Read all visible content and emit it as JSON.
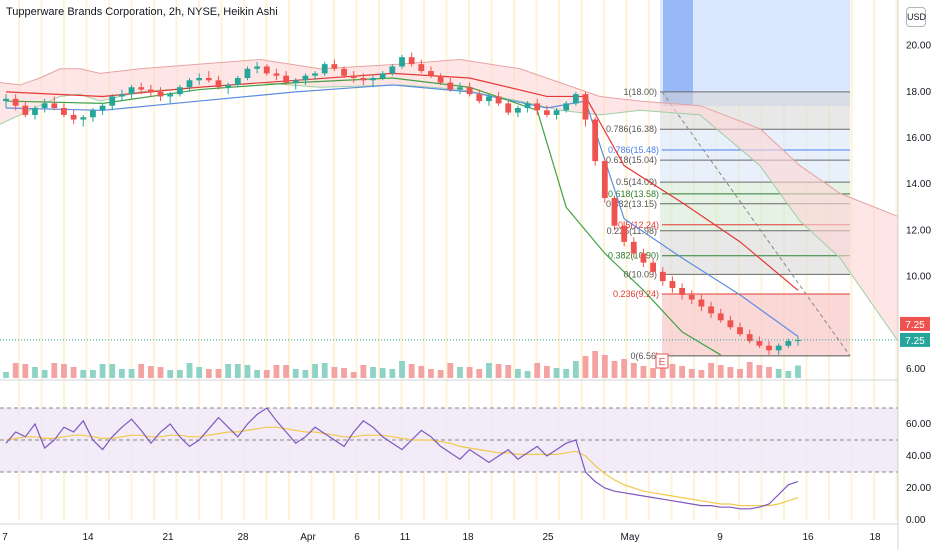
{
  "header": {
    "title": "Tupperware Brands Corporation, 2h, NYSE, Heikin Ashi",
    "currency_label": "USD"
  },
  "colors": {
    "bull": "#26a69a",
    "bear": "#ef5350",
    "session_band": "#fff3d6",
    "cloud_up": "#c8e6c9",
    "cloud_down": "#fdd6d6",
    "rsi_line": "#7e57c2",
    "rsi_ma": "#f2c94c",
    "projection_blue": "#4a80f0",
    "fib_gray": "#d6d6d6",
    "fib_pink": "#f8c8c8",
    "fib_green": "#cfe8d0",
    "fib_lightblue": "#d6e6f8"
  },
  "chart_data": {
    "type": "candlestick",
    "style": "Heikin Ashi",
    "interval": "2h",
    "price_axis": {
      "ticks": [
        "20.00",
        "18.00",
        "16.00",
        "14.00",
        "12.00",
        "10.00",
        "8.00",
        "6.00"
      ],
      "range": [
        5.6,
        21.2
      ]
    },
    "last_price_labels": [
      "7.25",
      "7.25"
    ],
    "time_axis": {
      "ticks": [
        "7",
        "14",
        "21",
        "28",
        "Apr",
        "6",
        "11",
        "18",
        "25",
        "May",
        "9",
        "16",
        "18"
      ]
    },
    "fib_retracement_upper": {
      "levels": [
        {
          "label": "1(18.00)",
          "value": 18.0
        },
        {
          "label": "0.786(16.38)",
          "value": 16.38
        },
        {
          "label": "0.618(15.04)",
          "value": 15.04
        },
        {
          "label": "0.5(14.09)",
          "value": 14.09
        },
        {
          "label": "0.382(13.15)",
          "value": 13.15
        },
        {
          "label": "0.236(11.98)",
          "value": 11.98
        },
        {
          "label": "0(10.09)",
          "value": 10.09
        }
      ]
    },
    "fib_retracement_lower": {
      "levels": [
        {
          "label": "0.786(15.48)",
          "value": 15.48
        },
        {
          "label": "0.618(13.58)",
          "value": 13.58
        },
        {
          "label": "0.5(12.24)",
          "value": 12.24
        },
        {
          "label": "0.382(10.90)",
          "value": 10.9
        },
        {
          "label": "0.236(9.24)",
          "value": 9.24
        },
        {
          "label": "0(6.56)",
          "value": 6.56
        }
      ]
    },
    "earnings_marker": "E",
    "candles": [
      [
        17.6,
        17.9,
        17.3,
        17.7
      ],
      [
        17.7,
        17.9,
        17.2,
        17.4
      ],
      [
        17.4,
        17.6,
        16.9,
        17.0
      ],
      [
        17.0,
        17.4,
        16.8,
        17.3
      ],
      [
        17.3,
        17.7,
        17.1,
        17.5
      ],
      [
        17.5,
        17.8,
        17.2,
        17.3
      ],
      [
        17.3,
        17.5,
        16.9,
        17.0
      ],
      [
        17.0,
        17.2,
        16.6,
        16.8
      ],
      [
        16.8,
        17.0,
        16.5,
        16.9
      ],
      [
        16.9,
        17.3,
        16.7,
        17.2
      ],
      [
        17.2,
        17.5,
        17.0,
        17.4
      ],
      [
        17.4,
        17.9,
        17.2,
        17.8
      ],
      [
        17.8,
        18.1,
        17.6,
        17.9
      ],
      [
        17.9,
        18.3,
        17.7,
        18.2
      ],
      [
        18.2,
        18.4,
        17.9,
        18.1
      ],
      [
        18.1,
        18.3,
        17.8,
        18.0
      ],
      [
        18.0,
        18.2,
        17.6,
        17.8
      ],
      [
        17.8,
        18.0,
        17.5,
        17.9
      ],
      [
        17.9,
        18.3,
        17.8,
        18.2
      ],
      [
        18.2,
        18.6,
        18.0,
        18.5
      ],
      [
        18.5,
        18.8,
        18.3,
        18.6
      ],
      [
        18.6,
        18.9,
        18.4,
        18.5
      ],
      [
        18.5,
        18.7,
        18.1,
        18.2
      ],
      [
        18.2,
        18.4,
        17.9,
        18.3
      ],
      [
        18.3,
        18.7,
        18.2,
        18.6
      ],
      [
        18.6,
        19.1,
        18.5,
        19.0
      ],
      [
        19.0,
        19.3,
        18.8,
        19.1
      ],
      [
        19.1,
        19.2,
        18.7,
        18.8
      ],
      [
        18.8,
        19.0,
        18.5,
        18.7
      ],
      [
        18.7,
        18.9,
        18.3,
        18.4
      ],
      [
        18.4,
        18.6,
        18.1,
        18.5
      ],
      [
        18.5,
        18.8,
        18.3,
        18.7
      ],
      [
        18.7,
        18.9,
        18.5,
        18.8
      ],
      [
        18.8,
        19.3,
        18.7,
        19.2
      ],
      [
        19.2,
        19.4,
        18.9,
        19.0
      ],
      [
        19.0,
        19.1,
        18.6,
        18.7
      ],
      [
        18.7,
        18.9,
        18.4,
        18.6
      ],
      [
        18.6,
        18.8,
        18.3,
        18.5
      ],
      [
        18.5,
        18.7,
        18.2,
        18.6
      ],
      [
        18.6,
        18.9,
        18.5,
        18.8
      ],
      [
        18.8,
        19.2,
        18.7,
        19.1
      ],
      [
        19.1,
        19.6,
        19.0,
        19.5
      ],
      [
        19.5,
        19.7,
        19.1,
        19.2
      ],
      [
        19.2,
        19.4,
        18.8,
        18.9
      ],
      [
        18.9,
        19.1,
        18.6,
        18.7
      ],
      [
        18.7,
        18.8,
        18.3,
        18.4
      ],
      [
        18.4,
        18.6,
        18.0,
        18.1
      ],
      [
        18.1,
        18.4,
        17.9,
        18.2
      ],
      [
        18.2,
        18.4,
        17.8,
        17.9
      ],
      [
        17.9,
        18.1,
        17.5,
        17.6
      ],
      [
        17.6,
        17.9,
        17.4,
        17.8
      ],
      [
        17.8,
        18.0,
        17.4,
        17.5
      ],
      [
        17.5,
        17.6,
        17.0,
        17.1
      ],
      [
        17.1,
        17.4,
        16.9,
        17.3
      ],
      [
        17.3,
        17.6,
        17.1,
        17.5
      ],
      [
        17.5,
        17.7,
        17.0,
        17.2
      ],
      [
        17.2,
        17.4,
        16.9,
        17.0
      ],
      [
        17.0,
        17.3,
        16.8,
        17.2
      ],
      [
        17.2,
        17.6,
        17.1,
        17.5
      ],
      [
        17.5,
        18.0,
        17.4,
        17.9
      ],
      [
        17.9,
        18.0,
        16.5,
        16.8
      ],
      [
        16.8,
        16.9,
        14.8,
        15.0
      ],
      [
        15.0,
        15.1,
        13.2,
        13.4
      ],
      [
        13.4,
        13.5,
        12.0,
        12.2
      ],
      [
        12.2,
        12.4,
        11.3,
        11.5
      ],
      [
        11.5,
        11.7,
        10.8,
        11.0
      ],
      [
        11.0,
        11.2,
        10.4,
        10.6
      ],
      [
        10.6,
        10.8,
        10.0,
        10.2
      ],
      [
        10.2,
        10.4,
        9.6,
        9.8
      ],
      [
        9.8,
        10.0,
        9.3,
        9.5
      ],
      [
        9.5,
        9.7,
        9.0,
        9.2
      ],
      [
        9.2,
        9.4,
        8.8,
        9.0
      ],
      [
        9.0,
        9.2,
        8.5,
        8.7
      ],
      [
        8.7,
        8.9,
        8.2,
        8.4
      ],
      [
        8.4,
        8.6,
        8.0,
        8.1
      ],
      [
        8.1,
        8.3,
        7.7,
        7.8
      ],
      [
        7.8,
        8.0,
        7.4,
        7.5
      ],
      [
        7.5,
        7.7,
        7.1,
        7.2
      ],
      [
        7.2,
        7.4,
        6.9,
        7.0
      ],
      [
        7.0,
        7.2,
        6.6,
        6.8
      ],
      [
        6.8,
        7.1,
        6.6,
        7.0
      ],
      [
        7.0,
        7.3,
        6.9,
        7.2
      ],
      [
        7.2,
        7.4,
        7.0,
        7.25
      ]
    ],
    "moving_averages": [
      {
        "color": "#e53935",
        "points": [
          [
            0,
            18.0
          ],
          [
            10,
            17.8
          ],
          [
            20,
            18.2
          ],
          [
            30,
            18.5
          ],
          [
            40,
            18.8
          ],
          [
            48,
            18.6
          ],
          [
            56,
            17.8
          ],
          [
            60,
            17.8
          ],
          [
            64,
            14.8
          ],
          [
            70,
            13.2
          ],
          [
            76,
            11.5
          ],
          [
            82,
            9.4
          ]
        ]
      },
      {
        "color": "#5c8de0",
        "points": [
          [
            0,
            17.3
          ],
          [
            10,
            17.2
          ],
          [
            20,
            17.6
          ],
          [
            30,
            18.0
          ],
          [
            40,
            18.3
          ],
          [
            48,
            18.0
          ],
          [
            56,
            17.3
          ],
          [
            60,
            17.6
          ],
          [
            64,
            12.5
          ],
          [
            70,
            10.8
          ],
          [
            76,
            9.2
          ],
          [
            82,
            7.4
          ]
        ]
      },
      {
        "color": "#43a047",
        "points": [
          [
            0,
            17.6
          ],
          [
            10,
            17.5
          ],
          [
            20,
            18.1
          ],
          [
            30,
            18.4
          ],
          [
            40,
            18.6
          ],
          [
            48,
            18.2
          ],
          [
            55,
            17.2
          ],
          [
            58,
            13.0
          ],
          [
            62,
            11.0
          ],
          [
            66,
            9.4
          ],
          [
            70,
            7.6
          ],
          [
            74,
            6.6
          ]
        ]
      }
    ],
    "volume_panel": {
      "note": "colored volume bars"
    },
    "rsi_panel": {
      "ticks": [
        "60.00",
        "40.00",
        "20.00",
        "0.00"
      ],
      "range": [
        0,
        80
      ],
      "bands": [
        30,
        50,
        70
      ],
      "rsi": [
        48,
        55,
        52,
        60,
        45,
        50,
        58,
        55,
        62,
        50,
        44,
        52,
        58,
        63,
        56,
        48,
        55,
        60,
        52,
        46,
        50,
        57,
        64,
        58,
        52,
        60,
        66,
        70,
        62,
        55,
        48,
        52,
        58,
        54,
        50,
        46,
        55,
        62,
        58,
        52,
        48,
        44,
        50,
        56,
        52,
        46,
        42,
        38,
        44,
        40,
        36,
        40,
        44,
        38,
        42,
        46,
        40,
        44,
        48,
        50,
        30,
        24,
        20,
        18,
        17,
        16,
        15,
        14,
        13,
        12,
        11,
        10,
        9,
        9,
        8,
        8,
        7,
        7,
        8,
        10,
        16,
        22,
        24
      ],
      "rsi_ma": [
        50,
        51,
        52,
        52,
        51,
        51,
        52,
        53,
        53,
        52,
        51,
        51,
        52,
        53,
        53,
        52,
        52,
        53,
        53,
        52,
        52,
        53,
        54,
        55,
        55,
        56,
        57,
        58,
        58,
        57,
        56,
        55,
        55,
        54,
        53,
        52,
        52,
        53,
        53,
        53,
        52,
        51,
        50,
        50,
        50,
        49,
        48,
        46,
        45,
        44,
        43,
        42,
        42,
        41,
        41,
        41,
        41,
        41,
        42,
        43,
        40,
        34,
        29,
        25,
        22,
        20,
        18,
        17,
        16,
        15,
        14,
        13,
        12,
        11,
        10,
        10,
        9,
        9,
        9,
        9,
        10,
        12,
        14
      ]
    }
  }
}
